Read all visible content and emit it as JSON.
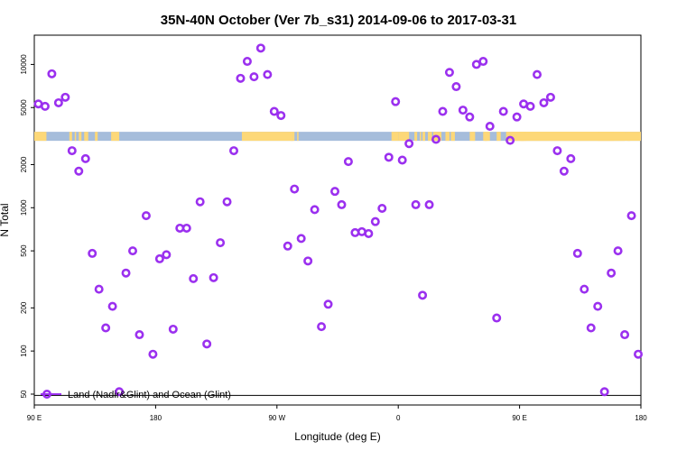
{
  "chart_data": {
    "type": "scatter",
    "title": "35N-40N October (Ver 7b_s31)   2014-09-06 to 2017-03-31",
    "xlabel": "Longitude (deg E)",
    "ylabel": "N Total",
    "x_ticks": [
      {
        "value": 90,
        "label": "90 E"
      },
      {
        "value": 180,
        "label": "180"
      },
      {
        "value": 270,
        "label": "90 W"
      },
      {
        "value": 360,
        "label": "0"
      },
      {
        "value": 450,
        "label": "90 E"
      },
      {
        "value": 540,
        "label": "180"
      }
    ],
    "y_ticks": [
      50,
      100,
      200,
      500,
      1000,
      2000,
      5000,
      10000
    ],
    "xlim": [
      90,
      540
    ],
    "ylim": [
      42,
      16000
    ],
    "yscale": "log",
    "grid": false,
    "legend": {
      "position": "bottom-left",
      "label": "Land (Nadir&Glint) and Ocean (Glint)"
    },
    "colors": {
      "series": "#9b30ef",
      "ocean": "#a6bddb",
      "land": "#fdd878",
      "baseline": "#000000"
    },
    "land_ocean_strip": {
      "y_value": 3150,
      "land_ranges": [
        [
          90,
          99
        ],
        [
          116,
          118
        ],
        [
          120,
          121
        ],
        [
          123,
          125
        ],
        [
          127,
          130
        ],
        [
          135,
          137
        ],
        [
          140,
          140
        ],
        [
          145,
          145
        ],
        [
          147,
          153
        ],
        [
          244,
          282
        ],
        [
          283,
          283
        ],
        [
          284,
          284
        ],
        [
          286,
          285
        ],
        [
          282,
          283
        ],
        [
          280,
          282
        ],
        [
          300,
          300
        ],
        [
          315,
          315
        ],
        [
          355,
          360
        ],
        [
          360,
          368
        ],
        [
          372,
          374
        ],
        [
          376,
          377
        ],
        [
          378,
          380
        ],
        [
          382,
          385
        ],
        [
          386,
          392
        ],
        [
          395,
          398
        ],
        [
          399,
          402
        ],
        [
          413,
          417
        ],
        [
          423,
          426
        ],
        [
          428,
          424
        ],
        [
          433,
          436
        ],
        [
          440,
          450
        ],
        [
          450,
          453
        ],
        [
          451,
          542
        ],
        [
          445,
          452
        ],
        [
          450,
          455
        ],
        [
          452,
          460
        ],
        [
          460,
          528
        ],
        [
          508,
          520
        ],
        [
          530,
          532
        ]
      ],
      "ocean_ranges": []
    },
    "series": [
      {
        "name": "Land (Nadir&Glint) and Ocean (Glint)",
        "x": [
          93,
          98,
          103,
          108,
          113,
          118,
          123,
          128,
          133,
          138,
          143,
          148,
          153,
          158,
          163,
          168,
          173,
          178,
          183,
          188,
          193,
          198,
          203,
          208,
          213,
          218,
          223,
          228,
          233,
          238,
          243,
          248,
          253,
          258,
          263,
          268,
          273,
          278,
          283,
          288,
          293,
          298,
          303,
          308,
          313,
          318,
          323,
          328,
          333,
          338,
          343,
          348,
          353,
          358,
          363,
          368,
          373,
          378,
          383,
          388,
          393,
          398,
          403,
          408,
          413,
          418,
          423,
          428,
          433,
          438,
          443,
          448,
          453,
          458,
          463,
          468,
          473,
          478,
          483,
          488,
          493,
          498,
          503,
          508,
          513,
          518,
          523,
          528,
          533,
          538
        ],
        "y": [
          5300,
          5100,
          8600,
          5400,
          5900,
          2500,
          1800,
          2200,
          480,
          270,
          145,
          205,
          52,
          350,
          500,
          130,
          880,
          95,
          440,
          470,
          142,
          720,
          720,
          320,
          1100,
          112,
          325,
          570,
          1100,
          2500,
          8000,
          10500,
          8200,
          13000,
          8500,
          4700,
          4400,
          540,
          1350,
          610,
          425,
          970,
          148,
          212,
          1300,
          1050,
          2100,
          670,
          680,
          660,
          800,
          990,
          2250,
          5500,
          2150,
          2800,
          1050,
          245,
          1050,
          3000,
          4700,
          8800,
          7000,
          4800,
          4300,
          10000,
          10500,
          3700,
          170,
          4700,
          2950,
          4300,
          5300,
          5100,
          8500,
          5400,
          5900,
          2500,
          1800,
          2200,
          480,
          270,
          145,
          205,
          52,
          350,
          500,
          130,
          880,
          95
        ]
      }
    ]
  }
}
